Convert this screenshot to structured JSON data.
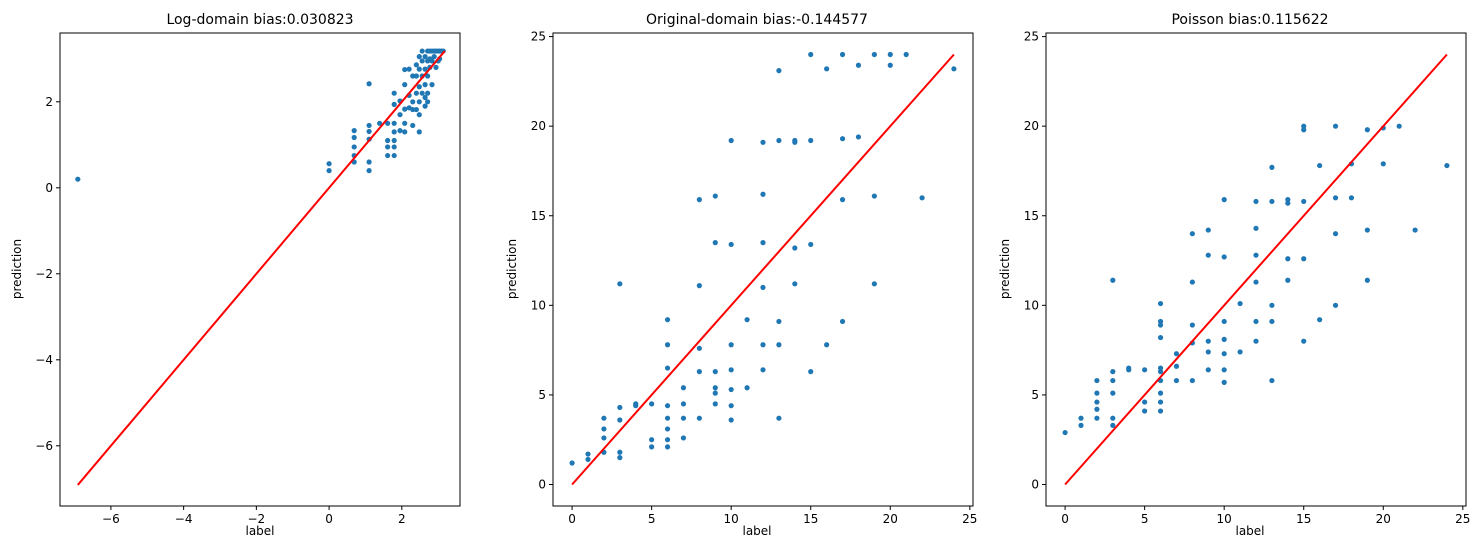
{
  "figure": {
    "background": "#ffffff"
  },
  "style": {
    "marker_color": "#1f77b4",
    "line_color": "#ff0000"
  },
  "chart_data": [
    {
      "type": "scatter",
      "title": "Log-domain bias:0.030823",
      "xlabel": "label",
      "ylabel": "prediction",
      "xlim": [
        -7.4,
        3.6
      ],
      "ylim": [
        -7.4,
        3.6
      ],
      "xticks": [
        -6,
        -4,
        -2,
        0,
        2
      ],
      "yticks": [
        -6,
        -4,
        -2,
        0,
        2
      ],
      "tick_labels_x": [
        "−6",
        "−4",
        "−2",
        "0",
        "2"
      ],
      "tick_labels_y": [
        "−6",
        "−4",
        "−2",
        "0",
        "2"
      ],
      "grid": false,
      "legend": "none",
      "series": [
        {
          "points": [
            [
              -6.91,
              0.2
            ],
            [
              0.0,
              0.56
            ],
            [
              0.0,
              0.4
            ],
            [
              0.69,
              1.33
            ],
            [
              0.69,
              1.17
            ],
            [
              0.69,
              0.95
            ],
            [
              0.69,
              0.75
            ],
            [
              0.69,
              0.6
            ],
            [
              1.1,
              2.42
            ],
            [
              1.1,
              1.45
            ],
            [
              1.1,
              1.31
            ],
            [
              1.1,
              1.13
            ],
            [
              1.1,
              0.6
            ],
            [
              1.1,
              0.4
            ],
            [
              1.39,
              1.5
            ],
            [
              1.61,
              1.5
            ],
            [
              1.61,
              1.1
            ],
            [
              1.61,
              0.95
            ],
            [
              1.61,
              0.75
            ],
            [
              1.79,
              2.2
            ],
            [
              1.79,
              1.94
            ],
            [
              1.79,
              1.5
            ],
            [
              1.79,
              1.3
            ],
            [
              1.79,
              1.1
            ],
            [
              1.79,
              0.95
            ],
            [
              1.79,
              0.75
            ],
            [
              1.95,
              2.02
            ],
            [
              1.95,
              1.7
            ],
            [
              1.95,
              1.33
            ],
            [
              2.08,
              2.75
            ],
            [
              2.08,
              2.4
            ],
            [
              2.08,
              1.83
            ],
            [
              2.08,
              1.5
            ],
            [
              2.08,
              1.3
            ],
            [
              2.2,
              2.76
            ],
            [
              2.2,
              2.15
            ],
            [
              2.2,
              1.86
            ],
            [
              2.3,
              2.6
            ],
            [
              2.3,
              2.0
            ],
            [
              2.3,
              1.82
            ],
            [
              2.3,
              1.45
            ],
            [
              2.4,
              2.86
            ],
            [
              2.4,
              2.6
            ],
            [
              2.4,
              2.2
            ],
            [
              2.4,
              1.82
            ],
            [
              2.48,
              3.05
            ],
            [
              2.48,
              2.76
            ],
            [
              2.48,
              2.35
            ],
            [
              2.48,
              2.0
            ],
            [
              2.48,
              1.7
            ],
            [
              2.48,
              1.3
            ],
            [
              2.56,
              3.18
            ],
            [
              2.56,
              2.95
            ],
            [
              2.56,
              2.6
            ],
            [
              2.56,
              2.2
            ],
            [
              2.64,
              3.05
            ],
            [
              2.64,
              2.76
            ],
            [
              2.64,
              2.4
            ],
            [
              2.64,
              2.1
            ],
            [
              2.64,
              1.9
            ],
            [
              2.71,
              3.18
            ],
            [
              2.71,
              2.95
            ],
            [
              2.71,
              2.6
            ],
            [
              2.71,
              2.2
            ],
            [
              2.71,
              2.0
            ],
            [
              2.77,
              3.18
            ],
            [
              2.77,
              3.0
            ],
            [
              2.77,
              2.8
            ],
            [
              2.83,
              3.18
            ],
            [
              2.83,
              2.95
            ],
            [
              2.83,
              2.4
            ],
            [
              2.89,
              3.18
            ],
            [
              2.89,
              3.05
            ],
            [
              2.94,
              3.18
            ],
            [
              2.94,
              2.8
            ],
            [
              3.0,
              3.18
            ],
            [
              3.0,
              2.95
            ],
            [
              3.04,
              3.18
            ],
            [
              3.04,
              3.0
            ],
            [
              3.09,
              3.18
            ],
            [
              3.14,
              3.18
            ]
          ]
        }
      ],
      "reference_line": [
        [
          -6.91,
          -6.91
        ],
        [
          3.18,
          3.18
        ]
      ]
    },
    {
      "type": "scatter",
      "title": "Original-domain bias:-0.144577",
      "xlabel": "label",
      "ylabel": "prediction",
      "xlim": [
        -1.2,
        25.2
      ],
      "ylim": [
        -1.2,
        25.2
      ],
      "xticks": [
        0,
        5,
        10,
        15,
        20,
        25
      ],
      "yticks": [
        0,
        5,
        10,
        15,
        20,
        25
      ],
      "tick_labels_x": [
        "0",
        "5",
        "10",
        "15",
        "20",
        "25"
      ],
      "tick_labels_y": [
        "0",
        "5",
        "10",
        "15",
        "20",
        "25"
      ],
      "grid": false,
      "legend": "none",
      "series": [
        {
          "points": [
            [
              0,
              1.2
            ],
            [
              1,
              1.7
            ],
            [
              1,
              1.4
            ],
            [
              2,
              3.7
            ],
            [
              2,
              3.1
            ],
            [
              2,
              2.6
            ],
            [
              2,
              1.8
            ],
            [
              3,
              11.2
            ],
            [
              3,
              4.3
            ],
            [
              3,
              3.6
            ],
            [
              3,
              1.8
            ],
            [
              3,
              1.5
            ],
            [
              4,
              4.5
            ],
            [
              4,
              4.4
            ],
            [
              5,
              4.5
            ],
            [
              5,
              2.5
            ],
            [
              5,
              2.1
            ],
            [
              6,
              9.2
            ],
            [
              6,
              7.8
            ],
            [
              6,
              6.5
            ],
            [
              6,
              4.4
            ],
            [
              6,
              3.7
            ],
            [
              6,
              3.1
            ],
            [
              6,
              2.5
            ],
            [
              6,
              2.1
            ],
            [
              7,
              5.4
            ],
            [
              7,
              4.5
            ],
            [
              7,
              3.7
            ],
            [
              7,
              2.6
            ],
            [
              8,
              15.9
            ],
            [
              8,
              11.1
            ],
            [
              8,
              7.6
            ],
            [
              8,
              6.3
            ],
            [
              8,
              3.7
            ],
            [
              9,
              16.1
            ],
            [
              9,
              13.5
            ],
            [
              9,
              6.3
            ],
            [
              9,
              5.4
            ],
            [
              9,
              5.1
            ],
            [
              9,
              4.5
            ],
            [
              10,
              19.2
            ],
            [
              10,
              13.4
            ],
            [
              10,
              7.8
            ],
            [
              10,
              6.4
            ],
            [
              10,
              5.3
            ],
            [
              10,
              4.4
            ],
            [
              10,
              3.6
            ],
            [
              11,
              9.2
            ],
            [
              11,
              5.4
            ],
            [
              12,
              19.1
            ],
            [
              12,
              16.2
            ],
            [
              12,
              13.5
            ],
            [
              12,
              11.0
            ],
            [
              12,
              7.8
            ],
            [
              12,
              6.4
            ],
            [
              13,
              23.1
            ],
            [
              13,
              19.2
            ],
            [
              13,
              9.1
            ],
            [
              13,
              7.8
            ],
            [
              13,
              3.7
            ],
            [
              14,
              19.2
            ],
            [
              14,
              19.1
            ],
            [
              14,
              13.2
            ],
            [
              14,
              11.2
            ],
            [
              15,
              24.0
            ],
            [
              15,
              19.2
            ],
            [
              15,
              13.4
            ],
            [
              15,
              6.3
            ],
            [
              16,
              23.2
            ],
            [
              16,
              7.8
            ],
            [
              17,
              24.0
            ],
            [
              17,
              19.3
            ],
            [
              17,
              15.9
            ],
            [
              17,
              9.1
            ],
            [
              18,
              23.4
            ],
            [
              18,
              19.4
            ],
            [
              19,
              24.0
            ],
            [
              19,
              16.1
            ],
            [
              19,
              11.2
            ],
            [
              20,
              24.0
            ],
            [
              20,
              23.4
            ],
            [
              21,
              24.0
            ],
            [
              22,
              16.0
            ],
            [
              24,
              23.2
            ]
          ]
        }
      ],
      "reference_line": [
        [
          0,
          0
        ],
        [
          24,
          24
        ]
      ]
    },
    {
      "type": "scatter",
      "title": "Poisson bias:0.115622",
      "xlabel": "label",
      "ylabel": "prediction",
      "xlim": [
        -1.2,
        25.2
      ],
      "ylim": [
        -1.2,
        25.2
      ],
      "xticks": [
        0,
        5,
        10,
        15,
        20,
        25
      ],
      "yticks": [
        0,
        5,
        10,
        15,
        20,
        25
      ],
      "tick_labels_x": [
        "0",
        "5",
        "10",
        "15",
        "20",
        "25"
      ],
      "tick_labels_y": [
        "0",
        "5",
        "10",
        "15",
        "20",
        "25"
      ],
      "grid": false,
      "legend": "none",
      "series": [
        {
          "points": [
            [
              0,
              2.9
            ],
            [
              1,
              3.7
            ],
            [
              1,
              3.3
            ],
            [
              2,
              5.8
            ],
            [
              2,
              5.1
            ],
            [
              2,
              4.6
            ],
            [
              2,
              4.2
            ],
            [
              2,
              3.7
            ],
            [
              3,
              11.4
            ],
            [
              3,
              6.3
            ],
            [
              3,
              5.8
            ],
            [
              3,
              5.1
            ],
            [
              3,
              3.7
            ],
            [
              3,
              3.3
            ],
            [
              4,
              6.4
            ],
            [
              4,
              6.5
            ],
            [
              5,
              6.4
            ],
            [
              5,
              4.6
            ],
            [
              5,
              4.1
            ],
            [
              6,
              10.1
            ],
            [
              6,
              9.1
            ],
            [
              6,
              8.9
            ],
            [
              6,
              8.2
            ],
            [
              6,
              6.5
            ],
            [
              6,
              6.3
            ],
            [
              6,
              5.8
            ],
            [
              6,
              5.1
            ],
            [
              6,
              4.6
            ],
            [
              6,
              4.1
            ],
            [
              7,
              7.3
            ],
            [
              7,
              6.6
            ],
            [
              7,
              5.8
            ],
            [
              8,
              14.0
            ],
            [
              8,
              11.3
            ],
            [
              8,
              8.9
            ],
            [
              8,
              7.9
            ],
            [
              8,
              5.8
            ],
            [
              9,
              14.2
            ],
            [
              9,
              12.8
            ],
            [
              9,
              8.0
            ],
            [
              9,
              7.4
            ],
            [
              9,
              6.4
            ],
            [
              10,
              15.9
            ],
            [
              10,
              12.7
            ],
            [
              10,
              9.1
            ],
            [
              10,
              8.1
            ],
            [
              10,
              7.3
            ],
            [
              10,
              6.4
            ],
            [
              10,
              5.7
            ],
            [
              11,
              10.1
            ],
            [
              11,
              7.4
            ],
            [
              12,
              15.8
            ],
            [
              12,
              14.3
            ],
            [
              12,
              12.8
            ],
            [
              12,
              11.3
            ],
            [
              12,
              9.1
            ],
            [
              12,
              8.0
            ],
            [
              13,
              17.7
            ],
            [
              13,
              15.8
            ],
            [
              13,
              10.0
            ],
            [
              13,
              9.1
            ],
            [
              13,
              5.8
            ],
            [
              14,
              15.7
            ],
            [
              14,
              15.9
            ],
            [
              14,
              12.6
            ],
            [
              14,
              11.4
            ],
            [
              15,
              20.0
            ],
            [
              15,
              19.8
            ],
            [
              15,
              15.8
            ],
            [
              15,
              12.6
            ],
            [
              15,
              8.0
            ],
            [
              16,
              17.8
            ],
            [
              16,
              9.2
            ],
            [
              17,
              20.0
            ],
            [
              17,
              16.0
            ],
            [
              17,
              14.0
            ],
            [
              17,
              10.0
            ],
            [
              18,
              17.9
            ],
            [
              18,
              16.0
            ],
            [
              19,
              19.8
            ],
            [
              19,
              14.2
            ],
            [
              19,
              11.4
            ],
            [
              20,
              19.9
            ],
            [
              20,
              17.9
            ],
            [
              21,
              20.0
            ],
            [
              22,
              14.2
            ],
            [
              24,
              17.8
            ]
          ]
        }
      ],
      "reference_line": [
        [
          0,
          0
        ],
        [
          24,
          24
        ]
      ]
    }
  ]
}
